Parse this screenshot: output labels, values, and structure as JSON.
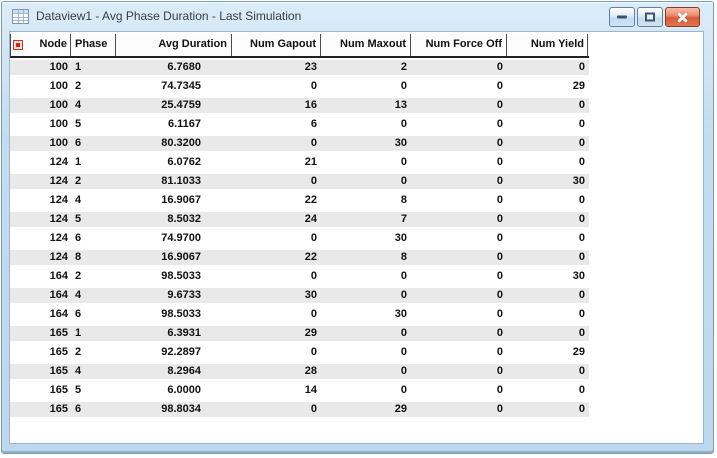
{
  "window": {
    "title": "Dataview1 - Avg Phase Duration - Last Simulation",
    "icon": "table-grid-icon",
    "controls": [
      {
        "id": "minimize",
        "name": "minimize-button",
        "icon": "minimize-dash-icon"
      },
      {
        "id": "maximize",
        "name": "maximize-button",
        "icon": "maximize-square-icon"
      },
      {
        "id": "close",
        "name": "close-button",
        "icon": "close-x-icon"
      }
    ]
  },
  "grid": {
    "corner_icon": "red-square-icon",
    "columns": [
      "Node",
      "Phase",
      "Avg Duration",
      "Num Gapout",
      "Num Maxout",
      "Num Force Off",
      "Num Yield"
    ],
    "rows": [
      [
        "100",
        "1",
        "6.7680",
        "23",
        "2",
        "0",
        "0"
      ],
      [
        "100",
        "2",
        "74.7345",
        "0",
        "0",
        "0",
        "29"
      ],
      [
        "100",
        "4",
        "25.4759",
        "16",
        "13",
        "0",
        "0"
      ],
      [
        "100",
        "5",
        "6.1167",
        "6",
        "0",
        "0",
        "0"
      ],
      [
        "100",
        "6",
        "80.3200",
        "0",
        "30",
        "0",
        "0"
      ],
      [
        "124",
        "1",
        "6.0762",
        "21",
        "0",
        "0",
        "0"
      ],
      [
        "124",
        "2",
        "81.1033",
        "0",
        "0",
        "0",
        "30"
      ],
      [
        "124",
        "4",
        "16.9067",
        "22",
        "8",
        "0",
        "0"
      ],
      [
        "124",
        "5",
        "8.5032",
        "24",
        "7",
        "0",
        "0"
      ],
      [
        "124",
        "6",
        "74.9700",
        "0",
        "30",
        "0",
        "0"
      ],
      [
        "124",
        "8",
        "16.9067",
        "22",
        "8",
        "0",
        "0"
      ],
      [
        "164",
        "2",
        "98.5033",
        "0",
        "0",
        "0",
        "30"
      ],
      [
        "164",
        "4",
        "9.6733",
        "30",
        "0",
        "0",
        "0"
      ],
      [
        "164",
        "6",
        "98.5033",
        "0",
        "30",
        "0",
        "0"
      ],
      [
        "165",
        "1",
        "6.3931",
        "29",
        "0",
        "0",
        "0"
      ],
      [
        "165",
        "2",
        "92.2897",
        "0",
        "0",
        "0",
        "29"
      ],
      [
        "165",
        "4",
        "8.2964",
        "28",
        "0",
        "0",
        "0"
      ],
      [
        "165",
        "5",
        "6.0000",
        "14",
        "0",
        "0",
        "0"
      ],
      [
        "165",
        "6",
        "98.8034",
        "0",
        "29",
        "0",
        "0"
      ]
    ]
  },
  "colors": {
    "titlebar_top": "#dcecf9",
    "titlebar_bottom": "#bdd8ee",
    "frame_border": "#7b9cb2",
    "row_stripe": "#e9e9e9",
    "header_rule": "#222222",
    "close_button": "#d95b39",
    "corner_icon_red": "#cc2b16"
  }
}
